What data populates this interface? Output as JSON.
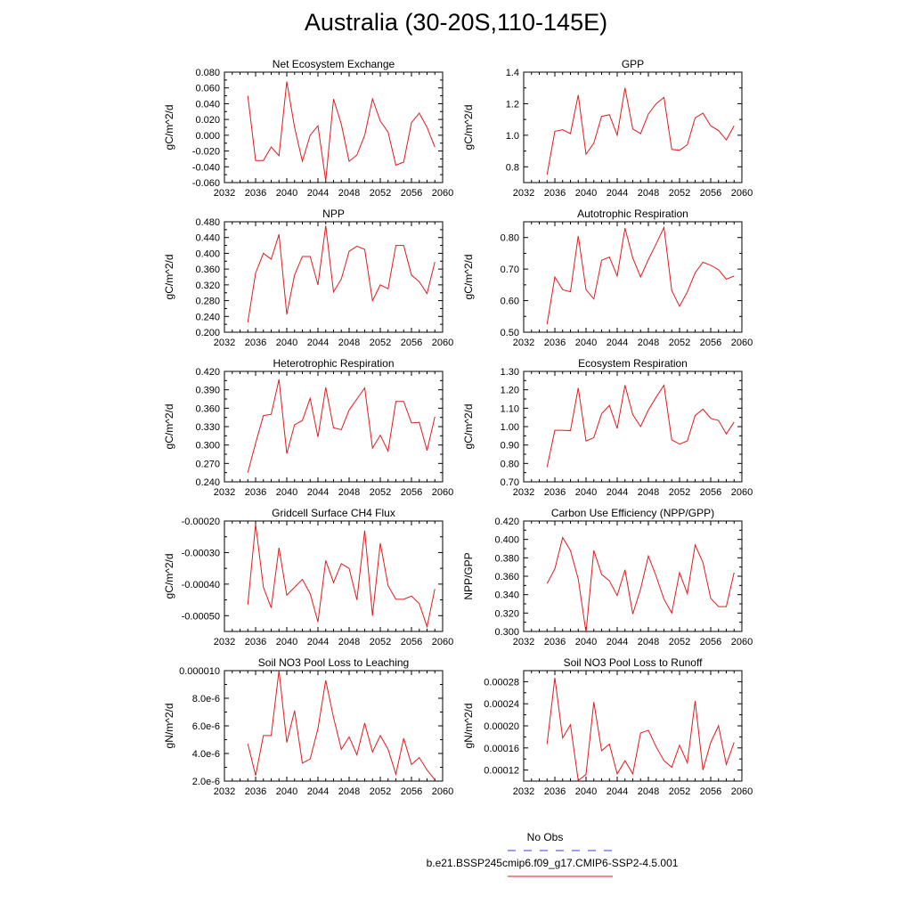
{
  "page": {
    "title": "Australia (30-20S,110-145E)"
  },
  "legend": {
    "obs_label": "No Obs",
    "obs_color": "#3b3bd6",
    "run_label": "b.e21.BSSP245cmip6.f09_g17.CMIP6-SSP2-4.5.001",
    "run_color": "#e31a1c"
  },
  "chart_data": [
    {
      "type": "line",
      "title": "Net Ecosystem Exchange",
      "ylabel": "gC/m^2/d",
      "xlim": [
        2032,
        2060
      ],
      "ylim": [
        -0.06,
        0.08
      ],
      "xticks": [
        "2032",
        "2036",
        "2040",
        "2044",
        "2048",
        "2052",
        "2056",
        "2060"
      ],
      "yticks": [
        "-0.060",
        "-0.040",
        "-0.020",
        "0.000",
        "0.020",
        "0.040",
        "0.060",
        "0.080"
      ],
      "x": [
        2035,
        2036,
        2037,
        2038,
        2039,
        2040,
        2041,
        2042,
        2043,
        2044,
        2045,
        2046,
        2047,
        2048,
        2049,
        2050,
        2051,
        2052,
        2053,
        2054,
        2055,
        2056,
        2057,
        2058,
        2059
      ],
      "values": [
        0.05,
        -0.032,
        -0.032,
        -0.015,
        -0.026,
        0.068,
        0.01,
        -0.033,
        0.0,
        0.012,
        -0.058,
        0.046,
        0.014,
        -0.033,
        -0.025,
        0.0,
        0.046,
        0.018,
        0.004,
        -0.038,
        -0.034,
        0.016,
        0.028,
        0.01,
        -0.015
      ]
    },
    {
      "type": "line",
      "title": "GPP",
      "ylabel": "gC/m^2/d",
      "xlim": [
        2032,
        2060
      ],
      "ylim": [
        0.7,
        1.4
      ],
      "xticks": [
        "2032",
        "2036",
        "2040",
        "2044",
        "2048",
        "2052",
        "2056",
        "2060"
      ],
      "yticks": [
        "0.8",
        "1.0",
        "1.2",
        "1.4"
      ],
      "x": [
        2035,
        2036,
        2037,
        2038,
        2039,
        2040,
        2041,
        2042,
        2043,
        2044,
        2045,
        2046,
        2047,
        2048,
        2049,
        2050,
        2051,
        2052,
        2053,
        2054,
        2055,
        2056,
        2057,
        2058,
        2059
      ],
      "values": [
        0.75,
        1.025,
        1.035,
        1.01,
        1.255,
        0.88,
        0.95,
        1.12,
        1.13,
        1.0,
        1.3,
        1.04,
        1.01,
        1.135,
        1.2,
        1.24,
        0.91,
        0.905,
        0.94,
        1.11,
        1.14,
        1.06,
        1.03,
        0.97,
        1.06
      ]
    },
    {
      "type": "line",
      "title": "NPP",
      "ylabel": "gC/m^2/d",
      "xlim": [
        2032,
        2060
      ],
      "ylim": [
        0.2,
        0.48
      ],
      "xticks": [
        "2032",
        "2036",
        "2040",
        "2044",
        "2048",
        "2052",
        "2056",
        "2060"
      ],
      "yticks": [
        "0.200",
        "0.240",
        "0.280",
        "0.320",
        "0.360",
        "0.400",
        "0.440",
        "0.480"
      ],
      "x": [
        2035,
        2036,
        2037,
        2038,
        2039,
        2040,
        2041,
        2042,
        2043,
        2044,
        2045,
        2046,
        2047,
        2048,
        2049,
        2050,
        2051,
        2052,
        2053,
        2054,
        2055,
        2056,
        2057,
        2058,
        2059
      ],
      "values": [
        0.225,
        0.35,
        0.4,
        0.385,
        0.448,
        0.245,
        0.345,
        0.392,
        0.392,
        0.32,
        0.47,
        0.302,
        0.335,
        0.405,
        0.418,
        0.41,
        0.28,
        0.32,
        0.31,
        0.42,
        0.42,
        0.345,
        0.328,
        0.298,
        0.378
      ]
    },
    {
      "type": "line",
      "title": "Autotrophic Respiration",
      "ylabel": "gC/m^2/d",
      "xlim": [
        2032,
        2060
      ],
      "ylim": [
        0.5,
        0.85
      ],
      "xticks": [
        "2032",
        "2036",
        "2040",
        "2044",
        "2048",
        "2052",
        "2056",
        "2060"
      ],
      "yticks": [
        "0.50",
        "0.60",
        "0.70",
        "0.80"
      ],
      "x": [
        2035,
        2036,
        2037,
        2038,
        2039,
        2040,
        2041,
        2042,
        2043,
        2044,
        2045,
        2046,
        2047,
        2048,
        2049,
        2050,
        2051,
        2052,
        2053,
        2054,
        2055,
        2056,
        2057,
        2058,
        2059
      ],
      "values": [
        0.525,
        0.675,
        0.635,
        0.628,
        0.805,
        0.635,
        0.605,
        0.728,
        0.738,
        0.678,
        0.83,
        0.735,
        0.675,
        0.73,
        0.78,
        0.832,
        0.632,
        0.582,
        0.628,
        0.688,
        0.722,
        0.712,
        0.698,
        0.668,
        0.678
      ]
    },
    {
      "type": "line",
      "title": "Heterotrophic Respiration",
      "ylabel": "gC/m^2/d",
      "xlim": [
        2032,
        2060
      ],
      "ylim": [
        0.24,
        0.42
      ],
      "xticks": [
        "2032",
        "2036",
        "2040",
        "2044",
        "2048",
        "2052",
        "2056",
        "2060"
      ],
      "yticks": [
        "0.240",
        "0.270",
        "0.300",
        "0.330",
        "0.360",
        "0.390",
        "0.420"
      ],
      "x": [
        2035,
        2036,
        2037,
        2038,
        2039,
        2040,
        2041,
        2042,
        2043,
        2044,
        2045,
        2046,
        2047,
        2048,
        2049,
        2050,
        2051,
        2052,
        2053,
        2054,
        2055,
        2056,
        2057,
        2058,
        2059
      ],
      "values": [
        0.255,
        0.303,
        0.348,
        0.35,
        0.407,
        0.286,
        0.333,
        0.34,
        0.376,
        0.313,
        0.394,
        0.328,
        0.325,
        0.357,
        0.375,
        0.393,
        0.295,
        0.316,
        0.29,
        0.371,
        0.371,
        0.336,
        0.337,
        0.291,
        0.346
      ]
    },
    {
      "type": "line",
      "title": "Ecosystem Respiration",
      "ylabel": "gC/m^2/d",
      "xlim": [
        2032,
        2060
      ],
      "ylim": [
        0.7,
        1.3
      ],
      "xticks": [
        "2032",
        "2036",
        "2040",
        "2044",
        "2048",
        "2052",
        "2056",
        "2060"
      ],
      "yticks": [
        "0.70",
        "0.80",
        "0.90",
        "1.00",
        "1.10",
        "1.20",
        "1.30"
      ],
      "x": [
        2035,
        2036,
        2037,
        2038,
        2039,
        2040,
        2041,
        2042,
        2043,
        2044,
        2045,
        2046,
        2047,
        2048,
        2049,
        2050,
        2051,
        2052,
        2053,
        2054,
        2055,
        2056,
        2057,
        2058,
        2059
      ],
      "values": [
        0.78,
        0.98,
        0.98,
        0.978,
        1.21,
        0.922,
        0.94,
        1.07,
        1.115,
        0.99,
        1.225,
        1.065,
        1.0,
        1.09,
        1.16,
        1.225,
        0.928,
        0.905,
        0.922,
        1.06,
        1.095,
        1.045,
        1.033,
        0.96,
        1.025
      ]
    },
    {
      "type": "line",
      "title": "Gridcell Surface CH4 Flux",
      "ylabel": "gC/m^2/d",
      "xlim": [
        2032,
        2060
      ],
      "ylim": [
        -0.00055,
        -0.0002
      ],
      "xticks": [
        "2032",
        "2036",
        "2040",
        "2044",
        "2048",
        "2052",
        "2056",
        "2060"
      ],
      "yticks": [
        "-0.00050",
        "-0.00040",
        "-0.00030",
        "-0.00020"
      ],
      "x": [
        2035,
        2036,
        2037,
        2038,
        2039,
        2040,
        2041,
        2042,
        2043,
        2044,
        2045,
        2046,
        2047,
        2048,
        2049,
        2050,
        2051,
        2052,
        2053,
        2054,
        2055,
        2056,
        2057,
        2058,
        2059
      ],
      "values": [
        -0.000465,
        -0.00021,
        -0.00041,
        -0.000475,
        -0.000285,
        -0.000435,
        -0.00041,
        -0.000385,
        -0.00043,
        -0.00052,
        -0.000325,
        -0.000395,
        -0.000335,
        -0.00035,
        -0.00045,
        -0.00023,
        -0.0005,
        -0.00027,
        -0.000405,
        -0.000448,
        -0.000448,
        -0.000438,
        -0.000462,
        -0.000535,
        -0.000415
      ]
    },
    {
      "type": "line",
      "title": "Carbon Use Efficiency (NPP/GPP)",
      "ylabel": "NPP/GPP",
      "xlim": [
        2032,
        2060
      ],
      "ylim": [
        0.3,
        0.42
      ],
      "xticks": [
        "2032",
        "2036",
        "2040",
        "2044",
        "2048",
        "2052",
        "2056",
        "2060"
      ],
      "yticks": [
        "0.300",
        "0.320",
        "0.340",
        "0.360",
        "0.380",
        "0.400",
        "0.420"
      ],
      "x": [
        2035,
        2036,
        2037,
        2038,
        2039,
        2040,
        2041,
        2042,
        2043,
        2044,
        2045,
        2046,
        2047,
        2048,
        2049,
        2050,
        2051,
        2052,
        2053,
        2054,
        2055,
        2056,
        2057,
        2058,
        2059
      ],
      "values": [
        0.352,
        0.368,
        0.402,
        0.388,
        0.357,
        0.299,
        0.388,
        0.362,
        0.355,
        0.339,
        0.367,
        0.319,
        0.346,
        0.382,
        0.36,
        0.335,
        0.32,
        0.364,
        0.341,
        0.394,
        0.375,
        0.336,
        0.327,
        0.327,
        0.364
      ]
    },
    {
      "type": "line",
      "title": "Soil NO3 Pool Loss to Leaching",
      "ylabel": "gN/m^2/d",
      "xlim": [
        2032,
        2060
      ],
      "ylim": [
        2e-06,
        1e-05
      ],
      "xticks": [
        "2032",
        "2036",
        "2040",
        "2044",
        "2048",
        "2052",
        "2056",
        "2060"
      ],
      "yticks": [
        "2.0e-6",
        "4.0e-6",
        "6.0e-6",
        "8.0e-6",
        "0.000010"
      ],
      "ytickvals": [
        2e-06,
        4e-06,
        6e-06,
        8e-06,
        1e-05
      ],
      "x": [
        2035,
        2036,
        2037,
        2038,
        2039,
        2040,
        2041,
        2042,
        2043,
        2044,
        2045,
        2046,
        2047,
        2048,
        2049,
        2050,
        2051,
        2052,
        2053,
        2054,
        2055,
        2056,
        2057,
        2058,
        2059
      ],
      "values": [
        4.7e-06,
        2.4e-06,
        5.3e-06,
        5.3e-06,
        1e-05,
        4.8e-06,
        7.1e-06,
        3.3e-06,
        3.6e-06,
        5.8e-06,
        9.3e-06,
        6.6e-06,
        4.3e-06,
        5.2e-06,
        3.9e-06,
        6.2e-06,
        4.1e-06,
        5.3e-06,
        4.3e-06,
        2.5e-06,
        5.1e-06,
        3.2e-06,
        3.7e-06,
        2.8e-06,
        2.1e-06
      ]
    },
    {
      "type": "line",
      "title": "Soil NO3 Pool Loss to Runoff",
      "ylabel": "gN/m^2/d",
      "xlim": [
        2032,
        2060
      ],
      "ylim": [
        0.0001,
        0.0003
      ],
      "xticks": [
        "2032",
        "2036",
        "2040",
        "2044",
        "2048",
        "2052",
        "2056",
        "2060"
      ],
      "yticks": [
        "0.00012",
        "0.00016",
        "0.00020",
        "0.00024",
        "0.00028"
      ],
      "ytickvals": [
        0.00012,
        0.00016,
        0.0002,
        0.00024,
        0.00028
      ],
      "x": [
        2035,
        2036,
        2037,
        2038,
        2039,
        2040,
        2041,
        2042,
        2043,
        2044,
        2045,
        2046,
        2047,
        2048,
        2049,
        2050,
        2051,
        2052,
        2053,
        2054,
        2055,
        2056,
        2057,
        2058,
        2059
      ],
      "values": [
        0.000167,
        0.000287,
        0.000178,
        0.000202,
        0.000101,
        0.000112,
        0.000243,
        0.000155,
        0.000167,
        0.000113,
        0.000137,
        0.000113,
        0.000187,
        0.000192,
        0.000162,
        0.000137,
        0.000125,
        0.000165,
        0.000133,
        0.000245,
        0.00012,
        0.00017,
        0.0002,
        0.00013,
        0.00017
      ]
    }
  ]
}
